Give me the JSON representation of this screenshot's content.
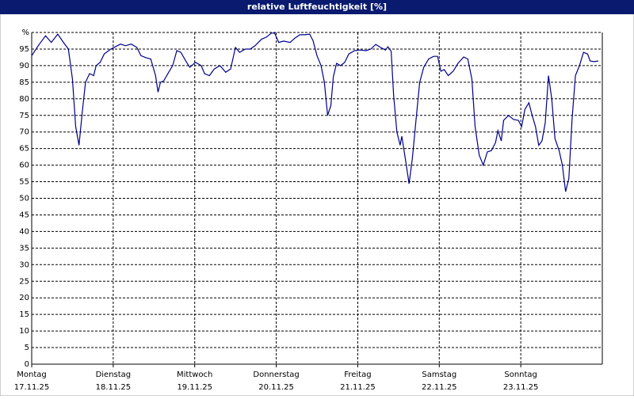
{
  "chart_data": {
    "type": "line",
    "title": "relative Luftfeuchtigkeit [%]",
    "xlim": [
      0,
      7
    ],
    "xticks": [
      {
        "value": 0,
        "label": "Montag",
        "date": "17.11.25"
      },
      {
        "value": 1,
        "label": "Dienstag",
        "date": "18.11.25"
      },
      {
        "value": 2,
        "label": "Mittwoch",
        "date": "19.11.25"
      },
      {
        "value": 3,
        "label": "Donnerstag",
        "date": "20.11.25"
      },
      {
        "value": 4,
        "label": "Freitag",
        "date": "21.11.25"
      },
      {
        "value": 5,
        "label": "Samstag",
        "date": "22.11.25"
      },
      {
        "value": 6,
        "label": "Sonntag",
        "date": "23.11.25"
      }
    ],
    "ylim": [
      0,
      100
    ],
    "yticks": [
      0,
      5,
      10,
      15,
      20,
      25,
      30,
      35,
      40,
      45,
      50,
      55,
      60,
      65,
      70,
      75,
      80,
      85,
      90,
      95,
      {
        "value": 100,
        "label": "%"
      }
    ],
    "grid": true,
    "x": [
      0,
      0.08,
      0.17,
      0.24,
      0.32,
      0.39,
      0.45,
      0.5,
      0.54,
      0.58,
      0.62,
      0.66,
      0.71,
      0.76,
      0.79,
      0.84,
      0.89,
      0.97,
      1.05,
      1.09,
      1.15,
      1.22,
      1.29,
      1.34,
      1.4,
      1.46,
      1.52,
      1.55,
      1.58,
      1.62,
      1.68,
      1.73,
      1.78,
      1.83,
      1.9,
      1.94,
      2.01,
      2.08,
      2.12,
      2.18,
      2.24,
      2.31,
      2.38,
      2.44,
      2.5,
      2.55,
      2.62,
      2.68,
      2.74,
      2.82,
      2.88,
      2.94,
      2.98,
      3.03,
      3.09,
      3.17,
      3.23,
      3.29,
      3.35,
      3.41,
      3.45,
      3.5,
      3.55,
      3.59,
      3.63,
      3.67,
      3.7,
      3.74,
      3.79,
      3.84,
      3.89,
      3.96,
      4.03,
      4.1,
      4.16,
      4.22,
      4.28,
      4.34,
      4.37,
      4.41,
      4.44,
      4.48,
      4.52,
      4.54,
      4.58,
      4.63,
      4.67,
      4.72,
      4.76,
      4.81,
      4.87,
      4.93,
      4.98,
      5.02,
      5.06,
      5.11,
      5.17,
      5.23,
      5.3,
      5.35,
      5.4,
      5.44,
      5.49,
      5.54,
      5.59,
      5.64,
      5.69,
      5.72,
      5.76,
      5.79,
      5.85,
      5.91,
      5.97,
      6.01,
      6.05,
      6.1,
      6.14,
      6.18,
      6.22,
      6.26,
      6.3,
      6.34,
      6.38,
      6.42,
      6.47,
      6.51,
      6.55,
      6.59,
      6.63,
      6.67,
      6.72,
      6.77,
      6.82,
      6.85,
      6.9,
      6.95
    ],
    "series": [
      {
        "color": "#00008b",
        "values": [
          93,
          96,
          99,
          97,
          99.5,
          97,
          95,
          86,
          71.6,
          66,
          76,
          85,
          87.6,
          87,
          90,
          91,
          93.5,
          95,
          96,
          96.5,
          96,
          96.5,
          95.5,
          93,
          92.4,
          92,
          87,
          82,
          85,
          85.4,
          88,
          90,
          94.5,
          94,
          91,
          89.5,
          91,
          90,
          87.6,
          87,
          89,
          90,
          88,
          89,
          95.5,
          94,
          95,
          95,
          96,
          98,
          98.6,
          99.8,
          99.8,
          97,
          97.4,
          97,
          98.3,
          99.3,
          99.3,
          99.5,
          97.6,
          93,
          90,
          85,
          75,
          78,
          86.6,
          90.7,
          90,
          91,
          93.5,
          94.5,
          94.7,
          94.5,
          95,
          96.4,
          95.5,
          94.7,
          95.7,
          94.3,
          81,
          70,
          66,
          68.7,
          62.5,
          54.4,
          62,
          75,
          85,
          89.5,
          92,
          92.8,
          92.8,
          88.3,
          88.8,
          87,
          88.3,
          90.7,
          92.6,
          92,
          86,
          71.6,
          63,
          60,
          64,
          64.4,
          66.8,
          70.4,
          67.3,
          73.5,
          75,
          73.8,
          73.5,
          71.6,
          76.8,
          78.8,
          75,
          71.6,
          66,
          67.3,
          72.8,
          87,
          80,
          68,
          64.4,
          60,
          52,
          56,
          74,
          87,
          90,
          94,
          93.5,
          91.4,
          91.2,
          91.4
        ]
      }
    ]
  }
}
